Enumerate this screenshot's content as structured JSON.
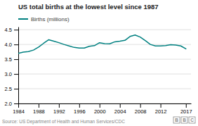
{
  "chart_data": {
    "type": "line",
    "title": "US total births at the lowest level since 1987",
    "source": "Source: US Department of Health and Human Services/CDC",
    "logo": [
      "B",
      "B",
      "C"
    ],
    "x": [
      1984,
      1985,
      1986,
      1987,
      1988,
      1989,
      1990,
      1991,
      1992,
      1993,
      1994,
      1995,
      1996,
      1997,
      1998,
      1999,
      2000,
      2001,
      2002,
      2003,
      2004,
      2005,
      2006,
      2007,
      2008,
      2009,
      2010,
      2011,
      2012,
      2013,
      2014,
      2015,
      2016,
      2017
    ],
    "series": [
      {
        "name": "Births (millions)",
        "color": "#008080",
        "values": [
          3.7,
          3.74,
          3.76,
          3.81,
          3.91,
          4.04,
          4.16,
          4.11,
          4.06,
          4.0,
          3.95,
          3.9,
          3.88,
          3.88,
          3.94,
          3.96,
          4.06,
          4.03,
          4.02,
          4.09,
          4.11,
          4.14,
          4.27,
          4.32,
          4.25,
          4.13,
          4.0,
          3.95,
          3.95,
          3.96,
          3.99,
          3.98,
          3.95,
          3.85
        ]
      }
    ],
    "xlim": [
      1984,
      2018
    ],
    "xticks": [
      1984,
      1988,
      1992,
      1996,
      2000,
      2004,
      2008,
      2012,
      2017
    ],
    "ylim": [
      2.0,
      4.6
    ],
    "yticks": [
      {
        "value": 2.0,
        "label": "2.0"
      },
      2.5,
      {
        "value": 3.0,
        "label": "3.0"
      },
      3.5,
      {
        "value": 4.0,
        "label": "4.0"
      },
      4.5
    ],
    "grid": true,
    "legend": "top-left"
  }
}
